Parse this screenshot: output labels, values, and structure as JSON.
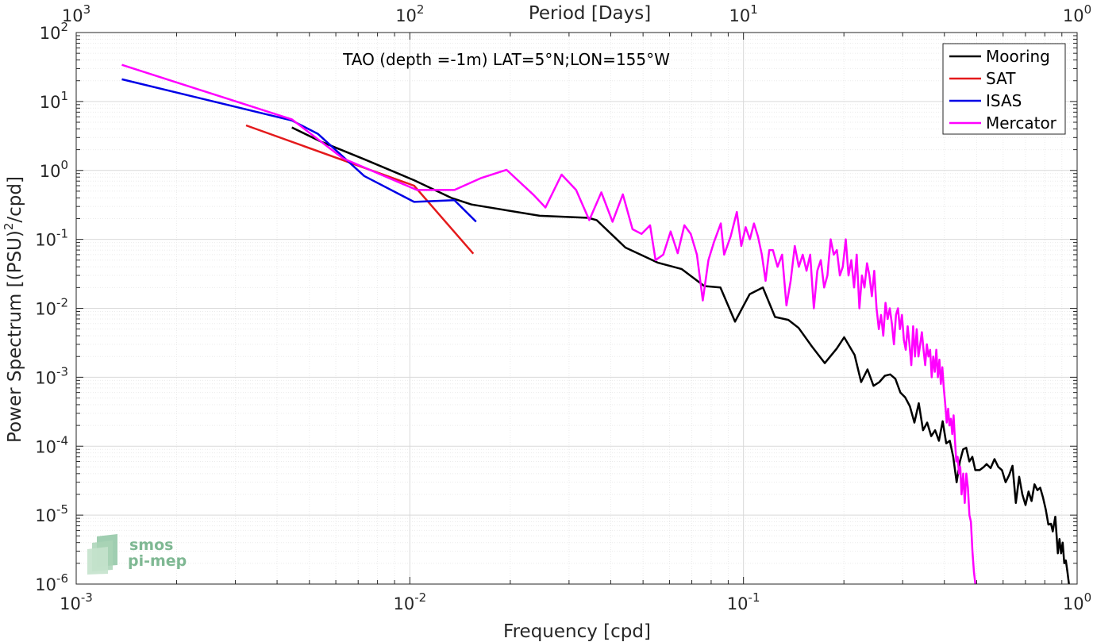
{
  "chart_data": {
    "type": "line",
    "annotation": "TAO (depth =-1m) LAT=5°N;LON=155°W",
    "xlabel": "Frequency [cpd]",
    "ylabel": "Power Spectrum [(PSU)²/cpd]",
    "x2label": "Period [Days]",
    "x_scale": "log",
    "y_scale": "log",
    "xlim": [
      0.001,
      1
    ],
    "ylim": [
      1e-06,
      100
    ],
    "grid": true,
    "legend_position": "top-right",
    "x_ticks": [
      {
        "v": 0.001,
        "b": "10",
        "e": "-3"
      },
      {
        "v": 0.01,
        "b": "10",
        "e": "-2"
      },
      {
        "v": 0.1,
        "b": "10",
        "e": "-1"
      },
      {
        "v": 1,
        "b": "10",
        "e": "0"
      }
    ],
    "x2_ticks": [
      {
        "v": 0.001,
        "b": "10",
        "e": "3"
      },
      {
        "v": 0.01,
        "b": "10",
        "e": "2"
      },
      {
        "v": 0.1,
        "b": "10",
        "e": "1"
      },
      {
        "v": 1,
        "b": "10",
        "e": "0"
      }
    ],
    "y_ticks": [
      {
        "v": 100,
        "b": "10",
        "e": "2"
      },
      {
        "v": 10,
        "b": "10",
        "e": "1"
      },
      {
        "v": 1,
        "b": "10",
        "e": "0"
      },
      {
        "v": 0.1,
        "b": "10",
        "e": "-1"
      },
      {
        "v": 0.01,
        "b": "10",
        "e": "-2"
      },
      {
        "v": 0.001,
        "b": "10",
        "e": "-3"
      },
      {
        "v": 0.0001,
        "b": "10",
        "e": "-4"
      },
      {
        "v": 1e-05,
        "b": "10",
        "e": "-5"
      },
      {
        "v": 1e-06,
        "b": "10",
        "e": "-6"
      }
    ],
    "series": [
      {
        "name": "Mooring",
        "color": "#000000",
        "points": [
          [
            0.00443,
            4.2
          ],
          [
            0.00543,
            2.6
          ],
          [
            0.0073,
            1.45
          ],
          [
            0.0103,
            0.72
          ],
          [
            0.0133,
            0.4
          ],
          [
            0.0153,
            0.32
          ],
          [
            0.0245,
            0.22
          ],
          [
            0.0343,
            0.205
          ],
          [
            0.0363,
            0.19
          ],
          [
            0.0443,
            0.076
          ],
          [
            0.0553,
            0.046
          ],
          [
            0.0653,
            0.037
          ],
          [
            0.0763,
            0.021
          ],
          [
            0.0853,
            0.02
          ],
          [
            0.0943,
            0.0064
          ],
          [
            0.1043,
            0.016
          ],
          [
            0.1143,
            0.02
          ],
          [
            0.1243,
            0.0075
          ],
          [
            0.1363,
            0.0068
          ],
          [
            0.1463,
            0.0052
          ],
          [
            0.1603,
            0.0028
          ],
          [
            0.1753,
            0.0016
          ],
          [
            0.1903,
            0.0026
          ],
          [
            0.2003,
            0.0038
          ],
          [
            0.2153,
            0.0021
          ],
          [
            0.2253,
            0.00085
          ],
          [
            0.2353,
            0.0013
          ],
          [
            0.2453,
            0.00075
          ],
          [
            0.2553,
            0.00085
          ],
          [
            0.2653,
            0.00105
          ],
          [
            0.2753,
            0.0011
          ],
          [
            0.2853,
            0.00095
          ],
          [
            0.2953,
            0.0006
          ],
          [
            0.3053,
            0.00051
          ],
          [
            0.3153,
            0.00038
          ],
          [
            0.3253,
            0.00022
          ],
          [
            0.3353,
            0.00042
          ],
          [
            0.3453,
            0.00017
          ],
          [
            0.3553,
            0.00022
          ],
          [
            0.3653,
            0.00014
          ],
          [
            0.3753,
            0.00017
          ],
          [
            0.3853,
            0.00012
          ],
          [
            0.3953,
            0.00023
          ],
          [
            0.4053,
            0.00011
          ],
          [
            0.4153,
            0.00012
          ],
          [
            0.4253,
            7e-05
          ],
          [
            0.4353,
            3e-05
          ],
          [
            0.4453,
            6e-05
          ],
          [
            0.4553,
            9e-05
          ],
          [
            0.4653,
            9.5e-05
          ],
          [
            0.4753,
            6e-05
          ],
          [
            0.4853,
            7e-05
          ],
          [
            0.4953,
            4.5e-05
          ],
          [
            0.5103,
            4.5e-05
          ],
          [
            0.5253,
            5e-05
          ],
          [
            0.5353,
            5.5e-05
          ],
          [
            0.5503,
            4.8e-05
          ],
          [
            0.5653,
            6.5e-05
          ],
          [
            0.5803,
            5e-05
          ],
          [
            0.5953,
            4.5e-05
          ],
          [
            0.6103,
            3e-05
          ],
          [
            0.6253,
            3.8e-05
          ],
          [
            0.6403,
            5.2e-05
          ],
          [
            0.6553,
            1.5e-05
          ],
          [
            0.6703,
            3.6e-05
          ],
          [
            0.6853,
            2e-05
          ],
          [
            0.7003,
            1.4e-05
          ],
          [
            0.7153,
            2.2e-05
          ],
          [
            0.7303,
            1.6e-05
          ],
          [
            0.7453,
            2.8e-05
          ],
          [
            0.7603,
            2.3e-05
          ],
          [
            0.7753,
            2.5e-05
          ],
          [
            0.7903,
            1.8e-05
          ],
          [
            0.8053,
            1.2e-05
          ],
          [
            0.8203,
            7.3e-06
          ],
          [
            0.8353,
            7.5e-06
          ],
          [
            0.8453,
            5.8e-06
          ],
          [
            0.8603,
            9.5e-06
          ],
          [
            0.8753,
            2.8e-06
          ],
          [
            0.8853,
            4.5e-06
          ],
          [
            0.8953,
            2.8e-06
          ],
          [
            0.9053,
            4e-06
          ],
          [
            0.9153,
            2e-06
          ],
          [
            0.9253,
            2.2e-06
          ],
          [
            0.9353,
            1.5e-06
          ],
          [
            0.9453,
            1e-06
          ]
        ]
      },
      {
        "name": "SAT",
        "color": "#e41a1c",
        "points": [
          [
            0.00323,
            4.5
          ],
          [
            0.0103,
            0.6
          ],
          [
            0.0155,
            0.062
          ]
        ]
      },
      {
        "name": "ISAS",
        "color": "#0000e6",
        "points": [
          [
            0.00137,
            21
          ],
          [
            0.00443,
            5.3
          ],
          [
            0.0053,
            3.4
          ],
          [
            0.0073,
            0.83
          ],
          [
            0.0103,
            0.35
          ],
          [
            0.0136,
            0.37
          ],
          [
            0.0158,
            0.18
          ]
        ]
      },
      {
        "name": "Mercator",
        "color": "#ff00ff",
        "points": [
          [
            0.00137,
            34
          ],
          [
            0.00443,
            5.5
          ],
          [
            0.0063,
            1.5
          ],
          [
            0.0105,
            0.52
          ],
          [
            0.0136,
            0.52
          ],
          [
            0.0163,
            0.77
          ],
          [
            0.0195,
            1.02
          ],
          [
            0.0235,
            0.44
          ],
          [
            0.0255,
            0.29
          ],
          [
            0.0285,
            0.87
          ],
          [
            0.0315,
            0.52
          ],
          [
            0.0345,
            0.19
          ],
          [
            0.0375,
            0.48
          ],
          [
            0.0405,
            0.18
          ],
          [
            0.0435,
            0.45
          ],
          [
            0.0465,
            0.14
          ],
          [
            0.0495,
            0.12
          ],
          [
            0.0525,
            0.16
          ],
          [
            0.0545,
            0.05
          ],
          [
            0.0575,
            0.06
          ],
          [
            0.0605,
            0.13
          ],
          [
            0.0635,
            0.063
          ],
          [
            0.0665,
            0.16
          ],
          [
            0.0695,
            0.12
          ],
          [
            0.0725,
            0.06
          ],
          [
            0.0755,
            0.013
          ],
          [
            0.0785,
            0.05
          ],
          [
            0.0815,
            0.09
          ],
          [
            0.0855,
            0.17
          ],
          [
            0.0875,
            0.06
          ],
          [
            0.0915,
            0.11
          ],
          [
            0.0955,
            0.25
          ],
          [
            0.0985,
            0.08
          ],
          [
            0.1015,
            0.15
          ],
          [
            0.1045,
            0.1
          ],
          [
            0.1075,
            0.17
          ],
          [
            0.1105,
            0.11
          ],
          [
            0.1135,
            0.06
          ],
          [
            0.1165,
            0.025
          ],
          [
            0.1195,
            0.07
          ],
          [
            0.1225,
            0.07
          ],
          [
            0.1265,
            0.04
          ],
          [
            0.1305,
            0.06
          ],
          [
            0.1345,
            0.011
          ],
          [
            0.1385,
            0.025
          ],
          [
            0.1425,
            0.08
          ],
          [
            0.1465,
            0.04
          ],
          [
            0.1505,
            0.06
          ],
          [
            0.1545,
            0.035
          ],
          [
            0.1585,
            0.06
          ],
          [
            0.1625,
            0.01
          ],
          [
            0.1665,
            0.035
          ],
          [
            0.1705,
            0.05
          ],
          [
            0.1745,
            0.02
          ],
          [
            0.1785,
            0.03
          ],
          [
            0.1825,
            0.1
          ],
          [
            0.1865,
            0.06
          ],
          [
            0.1905,
            0.07
          ],
          [
            0.1945,
            0.03
          ],
          [
            0.1985,
            0.04
          ],
          [
            0.2025,
            0.1
          ],
          [
            0.2065,
            0.03
          ],
          [
            0.2105,
            0.05
          ],
          [
            0.2145,
            0.02
          ],
          [
            0.2185,
            0.06
          ],
          [
            0.2225,
            0.01
          ],
          [
            0.2265,
            0.03
          ],
          [
            0.2305,
            0.02
          ],
          [
            0.2345,
            0.045
          ],
          [
            0.2385,
            0.03
          ],
          [
            0.2425,
            0.015
          ],
          [
            0.2465,
            0.035
          ],
          [
            0.2505,
            0.01
          ],
          [
            0.2545,
            0.005
          ],
          [
            0.2585,
            0.008
          ],
          [
            0.2625,
            0.004
          ],
          [
            0.2665,
            0.012
          ],
          [
            0.2705,
            0.007
          ],
          [
            0.2745,
            0.01
          ],
          [
            0.2785,
            0.006
          ],
          [
            0.2825,
            0.003
          ],
          [
            0.2865,
            0.008
          ],
          [
            0.2905,
            0.01
          ],
          [
            0.2945,
            0.005
          ],
          [
            0.2985,
            0.008
          ],
          [
            0.3025,
            0.0035
          ],
          [
            0.3065,
            0.0025
          ],
          [
            0.3105,
            0.0055
          ],
          [
            0.3145,
            0.003
          ],
          [
            0.3185,
            0.0015
          ],
          [
            0.3225,
            0.0055
          ],
          [
            0.3265,
            0.002
          ],
          [
            0.3305,
            0.005
          ],
          [
            0.3345,
            0.002
          ],
          [
            0.3385,
            0.003
          ],
          [
            0.3425,
            0.0045
          ],
          [
            0.3465,
            0.0025
          ],
          [
            0.3505,
            0.0015
          ],
          [
            0.3545,
            0.003
          ],
          [
            0.3585,
            0.002
          ],
          [
            0.3625,
            0.0025
          ],
          [
            0.3665,
            0.001
          ],
          [
            0.3705,
            0.002
          ],
          [
            0.3745,
            0.0012
          ],
          [
            0.3785,
            0.0025
          ],
          [
            0.3825,
            0.001
          ],
          [
            0.3865,
            0.0018
          ],
          [
            0.3905,
            0.0008
          ],
          [
            0.3945,
            0.0014
          ],
          [
            0.3985,
            0.0007
          ],
          [
            0.4025,
            0.0004
          ],
          [
            0.4065,
            0.00022
          ],
          [
            0.4105,
            0.00035
          ],
          [
            0.4145,
            0.0002
          ],
          [
            0.4185,
            0.00025
          ],
          [
            0.4225,
            0.00015
          ],
          [
            0.4265,
            0.00028
          ],
          [
            0.4305,
            0.00012
          ],
          [
            0.4345,
            6e-05
          ],
          [
            0.4385,
            7e-05
          ],
          [
            0.4425,
            4e-05
          ],
          [
            0.4465,
            5e-05
          ],
          [
            0.4505,
            2e-05
          ],
          [
            0.4555,
            4e-05
          ],
          [
            0.4605,
            1.5e-05
          ],
          [
            0.4655,
            4e-05
          ],
          [
            0.4705,
            2.5e-05
          ],
          [
            0.4755,
            1e-05
          ],
          [
            0.4805,
            8e-06
          ],
          [
            0.4855,
            3e-06
          ],
          [
            0.4905,
            1.5e-06
          ],
          [
            0.4955,
            1e-06
          ]
        ]
      }
    ]
  }
}
